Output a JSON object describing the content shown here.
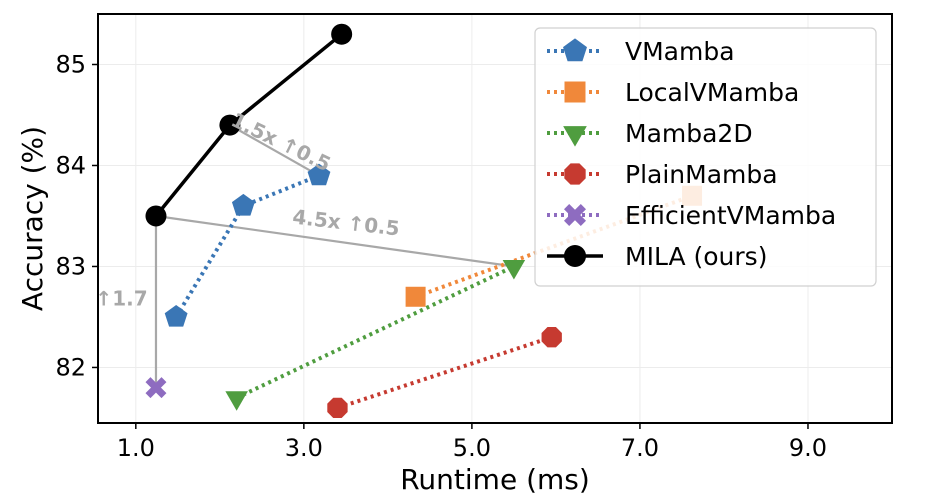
{
  "chart_data": {
    "type": "scatter",
    "title": "",
    "xlabel": "Runtime (ms)",
    "ylabel": "Accuracy (%)",
    "xlim": [
      0.55,
      10.0
    ],
    "ylim": [
      81.45,
      85.5
    ],
    "xticks": [
      1.0,
      3.0,
      5.0,
      7.0,
      9.0
    ],
    "xtick_labels": [
      "1.0",
      "3.0",
      "5.0",
      "7.0",
      "9.0"
    ],
    "yticks": [
      82,
      83,
      84,
      85
    ],
    "ytick_labels": [
      "82",
      "83",
      "84",
      "85"
    ],
    "grid": true,
    "legend_position": "top-right",
    "series": [
      {
        "name": "VMamba",
        "color": "#3a76b5",
        "marker": "pentagon",
        "line": "dotted",
        "x": [
          1.48,
          2.28,
          3.18
        ],
        "y": [
          82.5,
          83.6,
          83.9
        ]
      },
      {
        "name": "LocalVMamba",
        "color": "#f0883a",
        "marker": "square",
        "line": "dotted",
        "x": [
          4.33,
          7.62
        ],
        "y": [
          82.7,
          83.7
        ]
      },
      {
        "name": "Mamba2D",
        "color": "#4f9d3f",
        "marker": "triangle-down",
        "line": "dotted",
        "x": [
          2.2,
          5.5
        ],
        "y": [
          81.7,
          83.0
        ]
      },
      {
        "name": "PlainMamba",
        "color": "#c63a30",
        "marker": "octagon",
        "line": "dotted",
        "x": [
          3.4,
          5.95
        ],
        "y": [
          81.6,
          82.3
        ]
      },
      {
        "name": "EfficientVMamba",
        "color": "#8e6cc0",
        "marker": "x",
        "line": "dotted",
        "x": [
          1.24
        ],
        "y": [
          81.8
        ]
      },
      {
        "name": "MILA (ours)",
        "color": "#000000",
        "marker": "circle",
        "line": "solid",
        "x": [
          1.24,
          2.12,
          3.45
        ],
        "y": [
          83.5,
          84.4,
          85.3
        ]
      }
    ],
    "comparison_lines": [
      {
        "from": [
          2.12,
          84.4
        ],
        "to": [
          3.18,
          83.9
        ]
      },
      {
        "from": [
          1.24,
          83.5
        ],
        "to": [
          5.5,
          83.0
        ]
      },
      {
        "from": [
          1.24,
          83.5
        ],
        "to": [
          1.24,
          81.8
        ]
      }
    ],
    "annotations": [
      {
        "text": "1.5x ↑0.5",
        "x": 2.72,
        "y": 84.22,
        "rotation": 26
      },
      {
        "text": "4.5x ↑0.5",
        "x": 3.5,
        "y": 83.42,
        "rotation": 6.5
      },
      {
        "text": "↑1.7",
        "x": 0.83,
        "y": 82.67,
        "rotation": 0
      }
    ]
  }
}
